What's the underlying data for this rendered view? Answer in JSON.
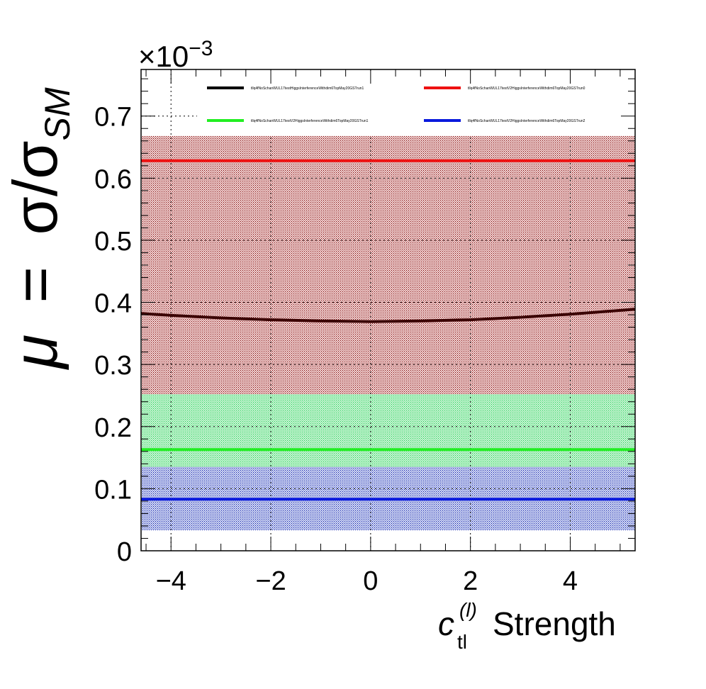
{
  "chart_data": {
    "type": "line",
    "title": "",
    "xlabel": "Strength",
    "xlabel_symbol": "c",
    "xlabel_superscript": "(l)",
    "xlabel_subscript": "tl",
    "ylabel_parts": {
      "mu": "μ",
      "equals": "=",
      "sigma": "σ",
      "slash": "/",
      "sigma2": "σ",
      "subscript": "SM"
    },
    "y_exponent_label": "×10",
    "y_exponent_power": "−3",
    "xlim": [
      -4.6,
      5.3
    ],
    "ylim": [
      0,
      0.000775
    ],
    "x_ticks": [
      -4,
      -2,
      0,
      2,
      4
    ],
    "x_tick_labels": [
      "−4",
      "−2",
      "0",
      "2",
      "4"
    ],
    "y_ticks": [
      0,
      0.0001,
      0.0002,
      0.0003,
      0.0004,
      0.0005,
      0.0006,
      0.0007
    ],
    "y_tick_labels": [
      "0",
      "0.1",
      "0.2",
      "0.3",
      "0.4",
      "0.5",
      "0.6",
      "0.7"
    ],
    "grid": true,
    "legend_position": "top",
    "bands": [
      {
        "series": "tllq4fNoSchanWUL17testHiggsInterferenceWithdim6TopMay20GSTrun1",
        "low": 0.000252,
        "high": 0.000668,
        "color": "#8b0000"
      },
      {
        "series": "tllq4fNoSchanWUL17testV2HiggsInterferenceWithdim6TopMay20GSTrun1",
        "low": 0.000123,
        "high": 0.000252,
        "color": "#33dd66"
      },
      {
        "series": "tllq4fNoSchanWUL17testV2HiggsInterferenceWithdim6TopMay20GSTrun2",
        "low": 3.3e-05,
        "high": 0.000135,
        "color": "#0a1aa8"
      }
    ],
    "series": [
      {
        "name": "tllq4fNoSchanWUL17testHiggsInterferenceWithdim6TopMay20GSTrun1",
        "color": "#3a0000",
        "x": [
          -4.6,
          -4,
          -3,
          -2,
          -1,
          0,
          1,
          2,
          3,
          4,
          5,
          5.3
        ],
        "y": [
          0.000382,
          0.000379,
          0.000375,
          0.000372,
          0.00037,
          0.000369,
          0.00037,
          0.000372,
          0.000376,
          0.000381,
          0.000387,
          0.000389
        ]
      },
      {
        "name": "tllq4fNoSchanWUL17testV2HiggsInterferenceWithdim6TopMay20GSTrun0",
        "color": "#ee1111",
        "x": [
          -4.6,
          5.3
        ],
        "y": [
          0.000628,
          0.000628
        ]
      },
      {
        "name": "tllq4fNoSchanWUL17testV2HiggsInterferenceWithdim6TopMay20GSTrun1",
        "color": "#22ee22",
        "x": [
          -4.6,
          5.3
        ],
        "y": [
          0.000163,
          0.000163
        ]
      },
      {
        "name": "tllq4fNoSchanWUL17testV2HiggsInterferenceWithdim6TopMay20GSTrun2",
        "color": "#0a1add",
        "x": [
          -4.6,
          5.3
        ],
        "y": [
          8.3e-05,
          8.3e-05
        ]
      }
    ],
    "legend": [
      {
        "label": "tllq4fNoSchanWUL17testHiggsInterferenceWithdim6TopMay20GSTrun1",
        "color": "#000000"
      },
      {
        "label": "tllq4fNoSchanWUL17testV2HiggsInterferenceWithdim6TopMay20GSTrun0",
        "color": "#ee1111"
      },
      {
        "label": "tllq4fNoSchanWUL17testV2HiggsInterferenceWithdim6TopMay20GSTrun1",
        "color": "#22ee22"
      },
      {
        "label": "tllq4fNoSchanWUL17testV2HiggsInterferenceWithdim6TopMay20GSTrun2",
        "color": "#0a1add"
      }
    ]
  }
}
